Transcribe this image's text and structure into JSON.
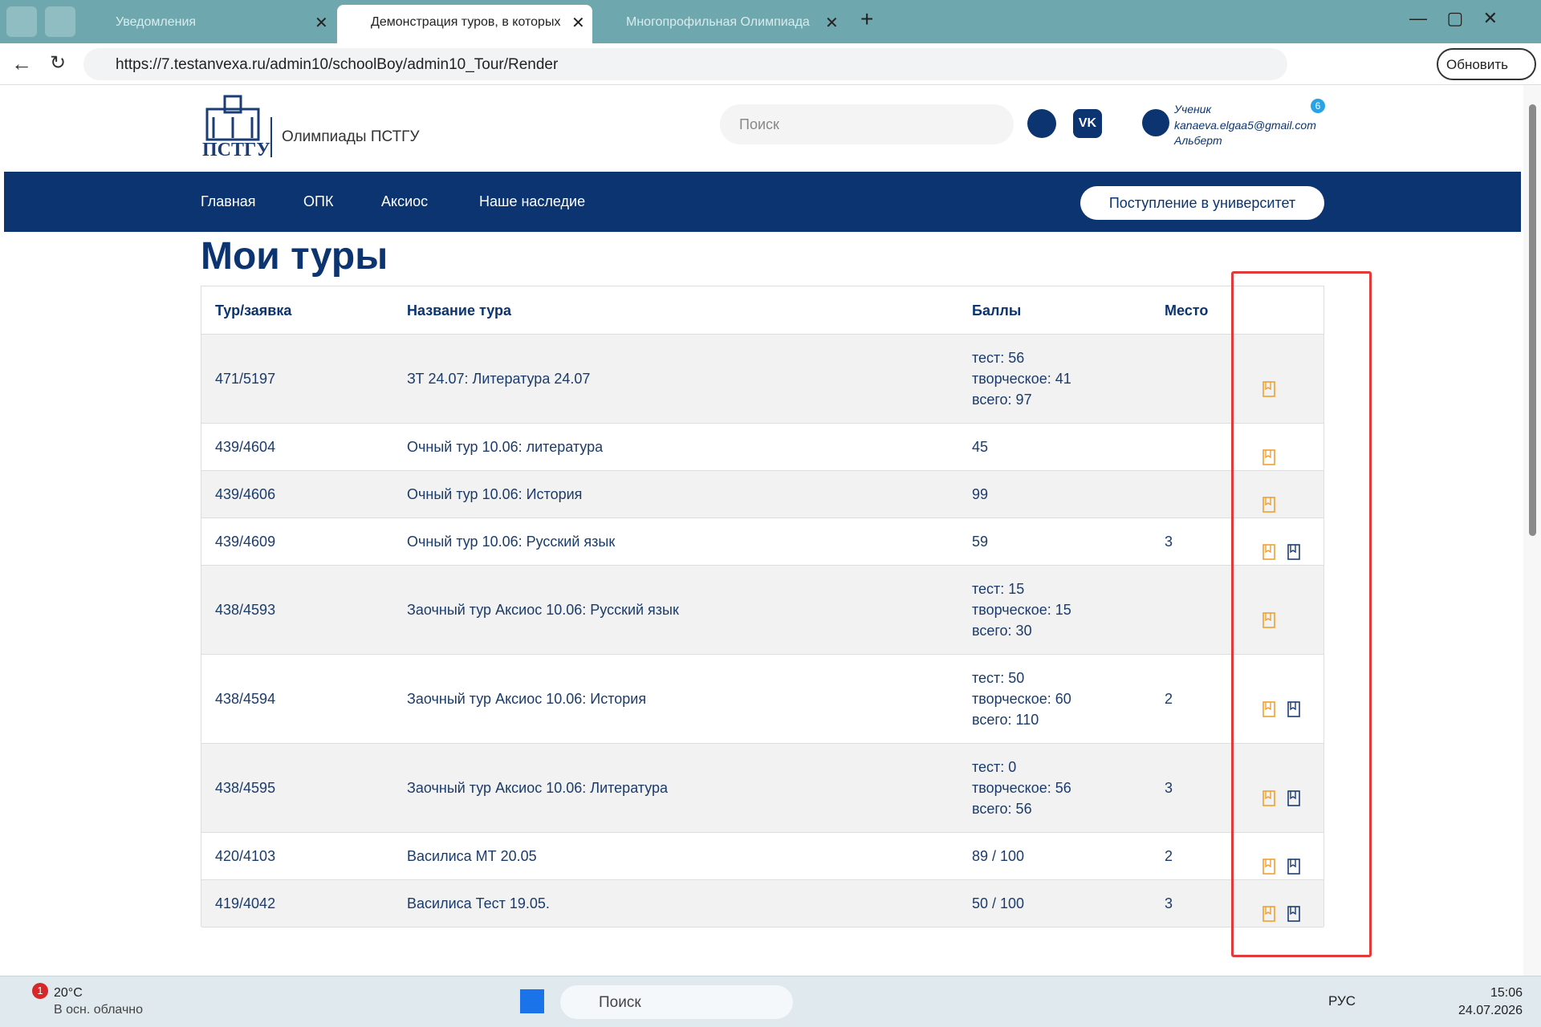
{
  "browser": {
    "tabs": [
      "Уведомления",
      "Демонстрация туров, в которых",
      "Многопрофильная Олимпиада"
    ],
    "url": "https://7.testanvexa.ru/admin10/schoolBoy/admin10_Tour/Render",
    "update_button": "Обновить"
  },
  "header": {
    "logo_text": "ПСТГУ",
    "site_name": "Олимпиады ПСТГУ",
    "search_placeholder": "Поиск",
    "user_role": "Ученик",
    "user_email": "kanaeva.elgaa5@gmail.com",
    "user_name": "Альберт",
    "notification_count": "6"
  },
  "nav": {
    "items": [
      "Главная",
      "ОПК",
      "Аксиос",
      "Наше наследие"
    ],
    "button": "Поступление в университет"
  },
  "page_title": "Мои туры",
  "table": {
    "columns": [
      "Тур/заявка",
      "Название тура",
      "Баллы",
      "Место"
    ],
    "rows": [
      [
        "471/5197",
        "ЗТ 24.07: Литература 24.07",
        [
          "тест: 56",
          "творческое: 41",
          "всего: 97"
        ],
        null
      ],
      [
        "439/4604",
        "Очный тур 10.06: литература",
        [
          "45"
        ],
        null
      ],
      [
        "439/4606",
        "Очный тур 10.06: История",
        [
          "99"
        ],
        null
      ],
      [
        "439/4609",
        "Очный тур 10.06: Русский язык",
        [
          "59"
        ],
        "3"
      ],
      [
        "438/4593",
        "Заочный тур Аксиос 10.06: Русский язык",
        [
          "тест: 15",
          "творческое: 15",
          "всего: 30"
        ],
        null
      ],
      [
        "438/4594",
        "Заочный тур Аксиос 10.06: История",
        [
          "тест: 50",
          "творческое: 60",
          "всего: 110"
        ],
        "2"
      ],
      [
        "438/4595",
        "Заочный тур Аксиос 10.06: Литература",
        [
          "тест: 0",
          "творческое: 56",
          "всего: 56"
        ],
        "3"
      ],
      [
        "420/4103",
        "Василиса МТ 20.05",
        [
          "89 / 100"
        ],
        "2"
      ],
      [
        "419/4042",
        "Василиса Тест 19.05.",
        [
          "50 / 100"
        ],
        "3"
      ]
    ]
  },
  "taskbar": {
    "weather_badge": "1",
    "temperature": "20°C",
    "weather": "В осн. облачно",
    "search": "Поиск",
    "language": "РУС",
    "time": "15:06",
    "date": "24.07.2026"
  }
}
